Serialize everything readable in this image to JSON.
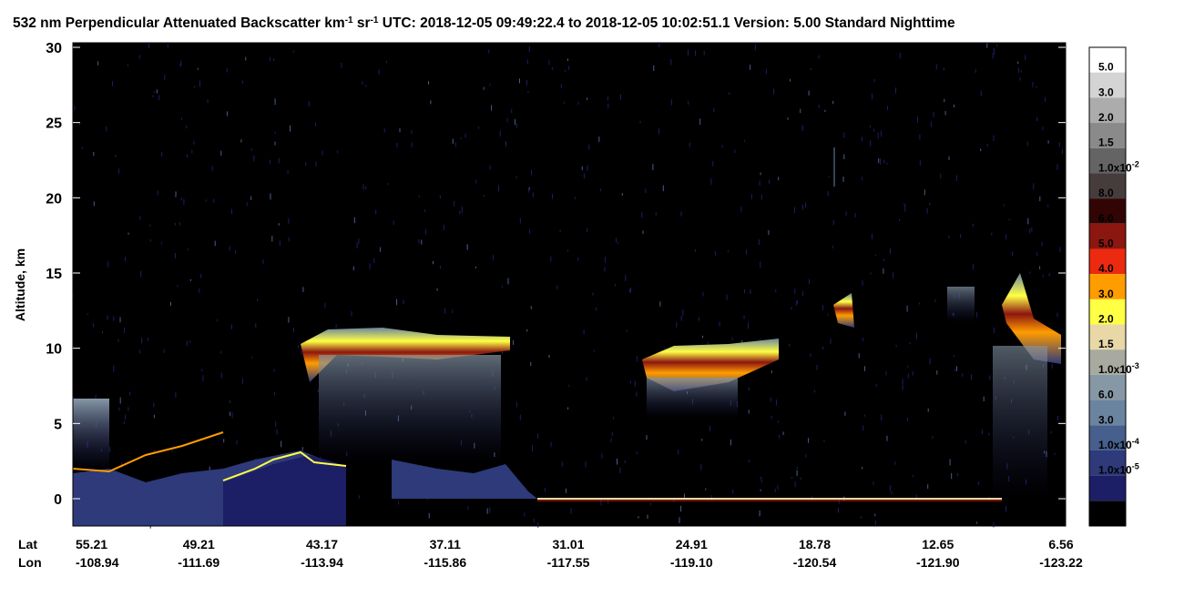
{
  "chart_data": {
    "type": "heatmap",
    "title": [
      "532 nm Perpendicular Attenuated Backscatter km",
      "-1",
      " sr",
      "-1",
      "  UTC: 2018-12-05 09:49:22.4 to 2018-12-05 10:02:51.1  Version: 5.00 Standard Nighttime"
    ],
    "ylabel": "Altitude, km",
    "ylim": [
      -1.8,
      30
    ],
    "yticks": [
      0,
      5,
      10,
      15,
      20,
      25,
      30
    ],
    "x_row_labels": [
      "Lat",
      "Lon"
    ],
    "lat": [
      "55.21",
      "49.21",
      "43.17",
      "37.11",
      "31.01",
      "24.91",
      "18.78",
      "12.65",
      "6.56"
    ],
    "lon": [
      "-108.94",
      "-111.69",
      "-113.94",
      "-115.86",
      "-117.55",
      "-119.10",
      "-120.54",
      "-121.90",
      "-123.22"
    ],
    "colorbar": {
      "colors": [
        "#ffffff",
        "#d4d4d4",
        "#acacac",
        "#8a8a8a",
        "#646464",
        "#463c3c",
        "#320404",
        "#8c1610",
        "#ec2a10",
        "#ff9c00",
        "#ffff44",
        "#e8d8a8",
        "#a8aaa0",
        "#8698a6",
        "#6a84a0",
        "#465f8c",
        "#2e3a7a",
        "#1c1e66",
        "#000000"
      ],
      "labels": [
        {
          "text": "5.0"
        },
        {
          "text": "3.0"
        },
        {
          "text": "2.0"
        },
        {
          "text": "1.5"
        },
        {
          "text": "1.0x10",
          "sup": "-2"
        },
        {
          "text": "8.0"
        },
        {
          "text": "6.0"
        },
        {
          "text": "5.0"
        },
        {
          "text": "4.0"
        },
        {
          "text": "3.0"
        },
        {
          "text": "2.0"
        },
        {
          "text": "1.5"
        },
        {
          "text": "1.0x10",
          "sup": "-3"
        },
        {
          "text": "6.0"
        },
        {
          "text": "3.0"
        },
        {
          "text": "1.0x10",
          "sup": "-4"
        },
        {
          "text": "1.0x10",
          "sup": "-5"
        }
      ]
    }
  }
}
